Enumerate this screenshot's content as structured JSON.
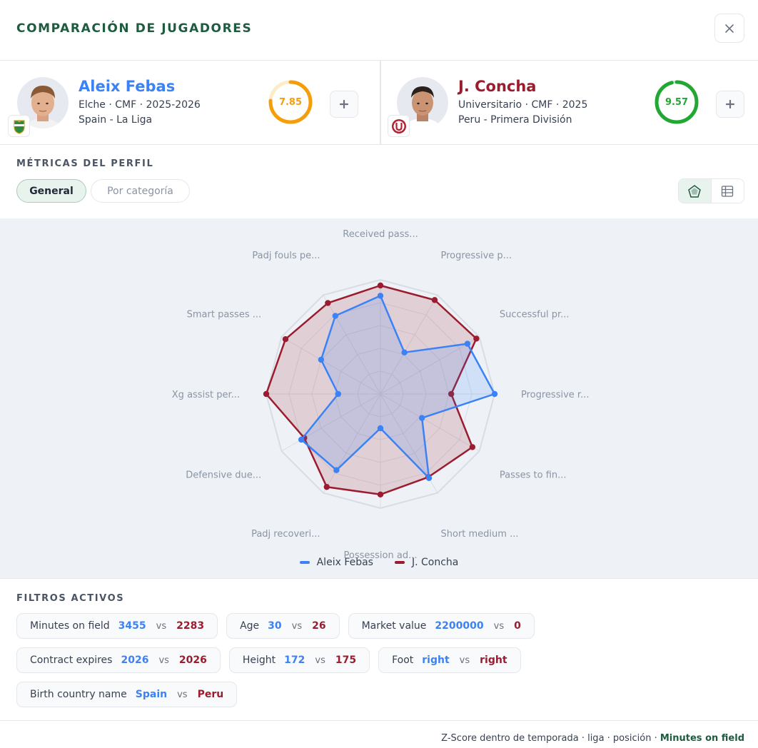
{
  "title": "COMPARACIÓN DE JUGADORES",
  "players": [
    {
      "name": "Aleix Febas",
      "line1": "Elche · CMF · 2025-2026",
      "line2": "Spain - La Liga",
      "score": "7.85",
      "score_fraction": 0.76,
      "color": "#3b82f6",
      "score_color": "#f59e0b",
      "club_icon": "elche-crest-icon"
    },
    {
      "name": "J. Concha",
      "line1": "Universitario · CMF · 2025",
      "line2": "Peru - Primera División",
      "score": "9.57",
      "score_fraction": 0.96,
      "color": "#9b1c2e",
      "score_color": "#22a832",
      "club_icon": "universitario-crest-icon"
    }
  ],
  "add_label": "+",
  "profile_metrics_label": "MÉTRICAS DEL PERFIL",
  "tabs": {
    "general": "General",
    "by_category": "Por categoría"
  },
  "chart_data": {
    "type": "radar",
    "axes": [
      "Received pass...",
      "Progressive p...",
      "Successful pr...",
      "Progressive r...",
      "Passes to fin...",
      "Short medium ...",
      "Possession ad...",
      "Padj recoveri...",
      "Defensive due...",
      "Xg assist per...",
      "Smart passes ...",
      "Padj fouls pe..."
    ],
    "range": [
      0,
      1
    ],
    "grid": true,
    "legend_position": "bottom",
    "series": [
      {
        "name": "Aleix Febas",
        "color": "#3b82f6",
        "values": [
          0.86,
          0.42,
          0.88,
          1.0,
          0.42,
          0.85,
          0.3,
          0.77,
          0.8,
          0.37,
          0.6,
          0.79
        ]
      },
      {
        "name": "J. Concha",
        "color": "#9b1c2e",
        "values": [
          0.95,
          0.95,
          0.97,
          0.62,
          0.93,
          0.84,
          0.88,
          0.94,
          0.77,
          1.0,
          0.96,
          0.92
        ]
      }
    ]
  },
  "active_filters_label": "FILTROS ACTIVOS",
  "filters": [
    {
      "label": "Minutes on field",
      "v1": "3455",
      "v2": "2283"
    },
    {
      "label": "Age",
      "v1": "30",
      "v2": "26"
    },
    {
      "label": "Market value",
      "v1": "2200000",
      "v2": "0"
    },
    {
      "label": "Contract expires",
      "v1": "2026",
      "v2": "2026"
    },
    {
      "label": "Height",
      "v1": "172",
      "v2": "175"
    },
    {
      "label": "Foot",
      "v1": "right",
      "v2": "right"
    },
    {
      "label": "Birth country name",
      "v1": "Spain",
      "v2": "Peru"
    }
  ],
  "vs_label": "vs",
  "footer": {
    "text": "Z-Score dentro de temporada · liga · posición · ",
    "highlight": "Minutes on field"
  }
}
